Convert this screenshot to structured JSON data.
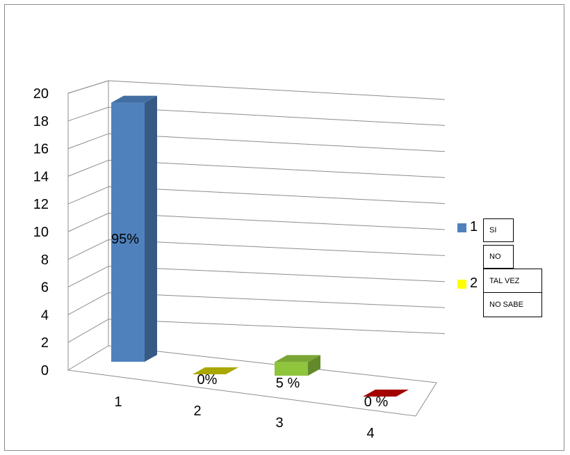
{
  "chart_data": {
    "type": "bar",
    "categories": [
      "1",
      "2",
      "3",
      "4"
    ],
    "values": [
      19,
      0,
      1,
      0
    ],
    "data_labels": [
      "95%",
      "0%",
      "5 %",
      "0 %"
    ],
    "colors": [
      "#4f81bd",
      "#c8c400",
      "#8fc43d",
      "#c00000"
    ],
    "yticks": [
      "0",
      "2",
      "4",
      "6",
      "8",
      "10",
      "12",
      "14",
      "16",
      "18",
      "20"
    ],
    "ylim": [
      0,
      20
    ],
    "title": "",
    "xlabel": "",
    "ylabel": "",
    "legend": [
      {
        "label": "1",
        "color": "#4f81bd"
      },
      {
        "label": "2",
        "color": "#ffff00"
      }
    ],
    "legend_placement": "right",
    "grid": true,
    "style": "3d"
  },
  "text_boxes": [
    "SI",
    "NO",
    "TAL VEZ",
    "NO SABE"
  ]
}
